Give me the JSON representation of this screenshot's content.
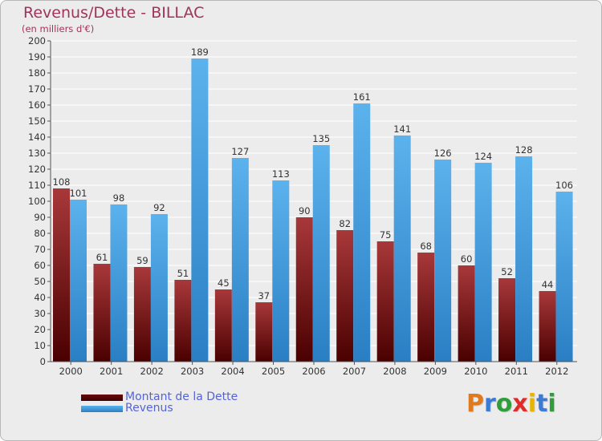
{
  "chart_data": {
    "type": "bar",
    "title": "Revenus/Dette - BILLAC",
    "subtitle": "(en milliers d'€)",
    "categories": [
      "2000",
      "2001",
      "2002",
      "2003",
      "2004",
      "2005",
      "2006",
      "2007",
      "2008",
      "2009",
      "2010",
      "2011",
      "2012"
    ],
    "series": [
      {
        "name": "Montant de la Dette",
        "color": "#8b1a1a",
        "values": [
          108,
          61,
          59,
          51,
          45,
          37,
          90,
          82,
          75,
          68,
          60,
          52,
          44
        ]
      },
      {
        "name": "Revenus",
        "color": "#4aa3e3",
        "values": [
          101,
          98,
          92,
          189,
          127,
          113,
          135,
          161,
          141,
          126,
          124,
          128,
          106
        ]
      }
    ],
    "ylim": [
      0,
      200
    ],
    "ytick_step": 10,
    "grid": true,
    "legend_position": "bottom-left"
  },
  "logo": {
    "letters": [
      "P",
      "r",
      "o",
      "x",
      "i",
      "t",
      "i"
    ],
    "colors": [
      "#e07a1f",
      "#3a7bd5",
      "#2e9e3a",
      "#e02b2b",
      "#e8b400",
      "#3a7bd5",
      "#2e9e3a"
    ]
  }
}
